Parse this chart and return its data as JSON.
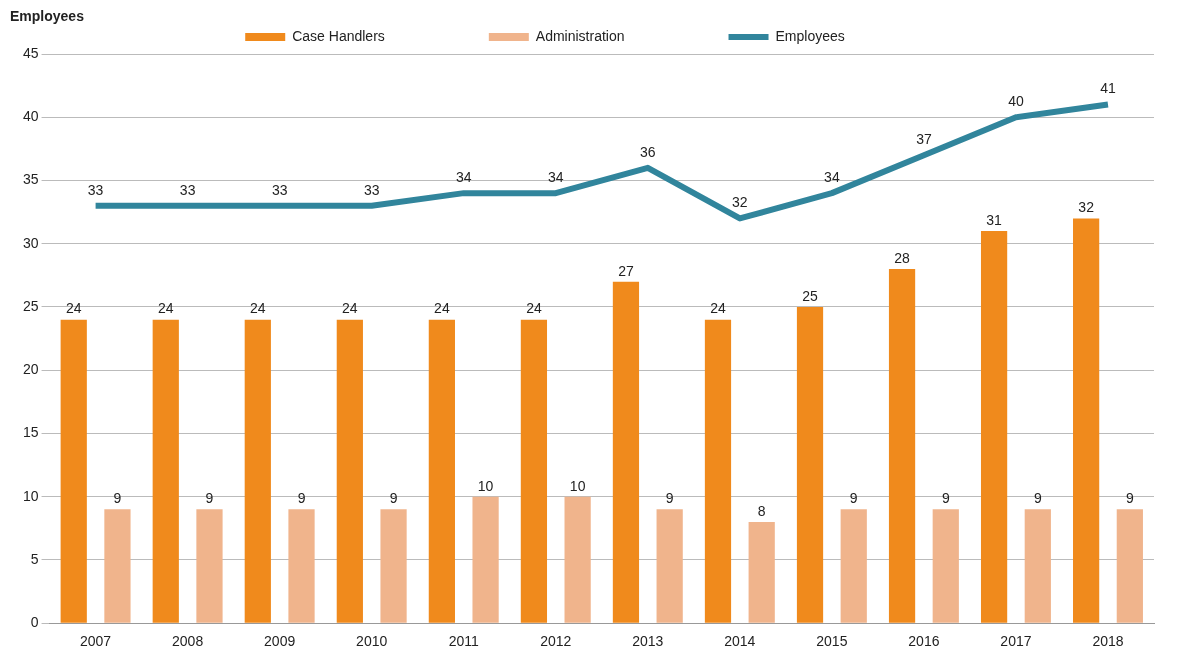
{
  "chart_data": {
    "type": "bar",
    "annotations": [
      "Employees"
    ],
    "categories": [
      "2007",
      "2008",
      "2009",
      "2010",
      "2011",
      "2012",
      "2013",
      "2014",
      "2015",
      "2016",
      "2017",
      "2018"
    ],
    "series": [
      {
        "name": "Case Handlers",
        "color": "#f08a1c",
        "values": [
          24,
          24,
          24,
          24,
          24,
          24,
          27,
          24,
          25,
          28,
          31,
          32
        ]
      },
      {
        "name": "Administration",
        "color": "#f0b48c",
        "values": [
          9,
          9,
          9,
          9,
          10,
          10,
          9,
          8,
          9,
          9,
          9,
          9
        ]
      },
      {
        "name": "Employees",
        "type": "line",
        "color": "#31859c",
        "values": [
          33,
          33,
          33,
          33,
          34,
          34,
          36,
          32,
          34,
          37,
          40,
          41
        ]
      }
    ],
    "ylim": [
      0,
      45
    ],
    "yticks": [
      0,
      5,
      10,
      15,
      20,
      25,
      30,
      35,
      40,
      45
    ],
    "grid": "y",
    "legend": "top",
    "data_labels": true,
    "marker": "none"
  }
}
